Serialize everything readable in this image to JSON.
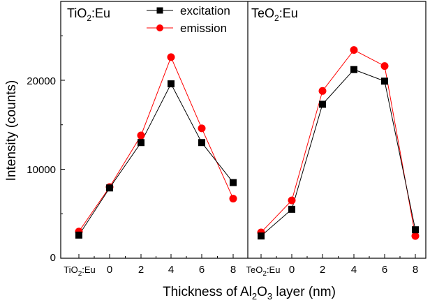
{
  "chart_data": {
    "type": "line",
    "ylabel": "Intensity (counts)",
    "xlabel": {
      "prefix": "Thickness of Al",
      "subscript": "2",
      "middle": "O",
      "subscript2": "3",
      "suffix": " layer (nm)"
    },
    "ylim": [
      0,
      28000
    ],
    "yticks": [
      0,
      10000,
      20000
    ],
    "ytick_labels": [
      "0",
      "10000",
      "20000"
    ],
    "legend": {
      "position": "top-center",
      "entries": [
        {
          "name": "excitation",
          "marker": "square",
          "color": "#000000"
        },
        {
          "name": "emission",
          "marker": "circle",
          "color": "#ff0000"
        }
      ]
    },
    "panels": [
      {
        "title": {
          "base": "TiO",
          "sub": "2",
          "suffix": ":Eu"
        },
        "first_tick": {
          "base": "TiO",
          "sub": "2",
          "suffix": ":Eu"
        },
        "categories": [
          "TiO2:Eu",
          "0",
          "2",
          "4",
          "6",
          "8"
        ],
        "tick_labels": [
          "0",
          "2",
          "4",
          "6",
          "8"
        ],
        "series": [
          {
            "name": "excitation",
            "values": [
              2600,
              7900,
              13000,
              19600,
              13000,
              8500
            ]
          },
          {
            "name": "emission",
            "values": [
              3000,
              8000,
              13800,
              22600,
              14600,
              6700
            ]
          }
        ]
      },
      {
        "title": {
          "base": "TeO",
          "sub": "2",
          "suffix": ":Eu"
        },
        "first_tick": {
          "base": "TeO",
          "sub": "2",
          "suffix": ":Eu"
        },
        "categories": [
          "TeO2:Eu",
          "0",
          "2",
          "4",
          "6",
          "8"
        ],
        "tick_labels": [
          "0",
          "2",
          "4",
          "6",
          "8"
        ],
        "series": [
          {
            "name": "excitation",
            "values": [
              2500,
              5500,
              17300,
              21200,
              19900,
              3200
            ]
          },
          {
            "name": "emission",
            "values": [
              2900,
              6500,
              18800,
              23400,
              21600,
              2500
            ]
          }
        ]
      }
    ]
  }
}
